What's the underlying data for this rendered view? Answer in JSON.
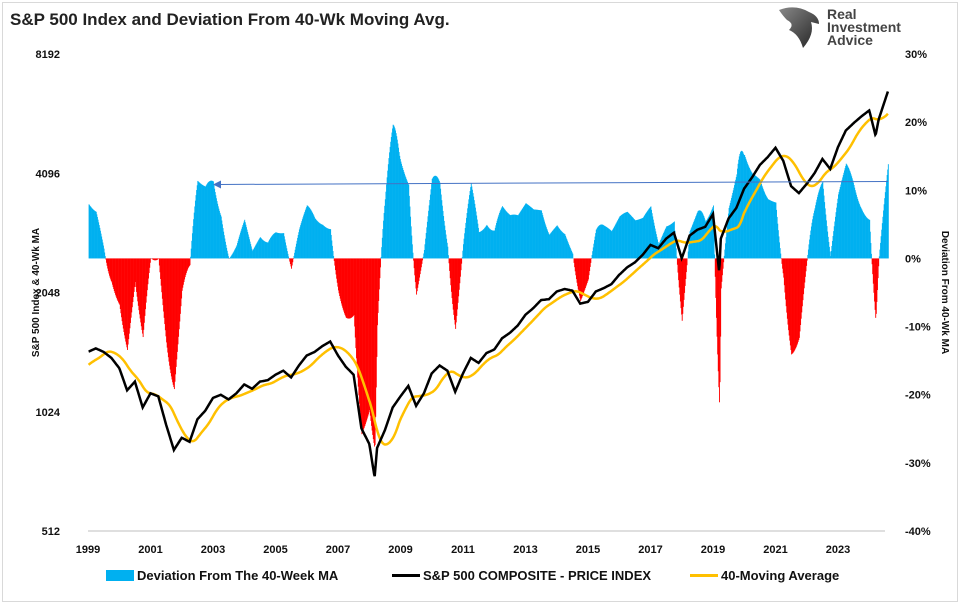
{
  "title": "S&P 500 Index and Deviation From 40-Wk Moving Avg.",
  "logo": {
    "text": [
      "Real",
      "Investment",
      "Advice"
    ],
    "icon": "eagle-icon"
  },
  "colors": {
    "deviation_pos": "#00b0f0",
    "deviation_neg": "#ff0000",
    "price": "#000000",
    "ma": "#ffc000",
    "annotation": "#4472c4"
  },
  "chart_data": {
    "type": "line+bar",
    "title": "S&P 500 Index and Deviation From 40-Wk Moving Avg.",
    "xlabel": "",
    "ylabel_left": "S&P 500 Index & 40-Wk MA",
    "ylabel_right": "Deviation From 40-Wk MA",
    "x_ticks": [
      "1999",
      "2001",
      "2003",
      "2005",
      "2007",
      "2009",
      "2011",
      "2013",
      "2015",
      "2017",
      "2019",
      "2021",
      "2023"
    ],
    "left_axis": {
      "scale": "log2",
      "range": [
        512,
        8192
      ],
      "ticks": [
        "512",
        "1024",
        "2048",
        "4096",
        "8192"
      ]
    },
    "right_axis": {
      "range": [
        -40,
        30
      ],
      "unit": "%",
      "ticks": [
        "-40%",
        "-30%",
        "-20%",
        "-10%",
        "0%",
        "10%",
        "20%",
        "30%"
      ]
    },
    "ma_window_weeks": 40,
    "legend": {
      "placement": "bottom",
      "entries": [
        "Deviation From The 40-Week MA",
        "S&P 500 COMPOSITE - PRICE INDEX",
        "40-Moving Average"
      ]
    },
    "annotation": {
      "type": "arrow",
      "deviation_level": 11,
      "from_year": 2024.6,
      "to_year": 2003.0
    },
    "price_series": [
      [
        1998.25,
        1300
      ],
      [
        1998.5,
        1370
      ],
      [
        1998.75,
        1280
      ],
      [
        1999.0,
        1450
      ],
      [
        1999.25,
        1480
      ],
      [
        1999.5,
        1450
      ],
      [
        1999.75,
        1400
      ],
      [
        2000.0,
        1320
      ],
      [
        2000.25,
        1160
      ],
      [
        2000.5,
        1220
      ],
      [
        2000.75,
        1050
      ],
      [
        2001.0,
        1140
      ],
      [
        2001.25,
        1120
      ],
      [
        2001.5,
        950
      ],
      [
        2001.75,
        820
      ],
      [
        2002.0,
        880
      ],
      [
        2002.25,
        860
      ],
      [
        2002.5,
        980
      ],
      [
        2002.75,
        1030
      ],
      [
        2003.0,
        1110
      ],
      [
        2003.25,
        1130
      ],
      [
        2003.5,
        1100
      ],
      [
        2003.75,
        1140
      ],
      [
        2004.0,
        1200
      ],
      [
        2004.25,
        1170
      ],
      [
        2004.5,
        1220
      ],
      [
        2004.75,
        1230
      ],
      [
        2005.0,
        1270
      ],
      [
        2005.25,
        1300
      ],
      [
        2005.5,
        1250
      ],
      [
        2005.75,
        1340
      ],
      [
        2006.0,
        1420
      ],
      [
        2006.25,
        1450
      ],
      [
        2006.5,
        1500
      ],
      [
        2006.75,
        1540
      ],
      [
        2007.0,
        1420
      ],
      [
        2007.25,
        1330
      ],
      [
        2007.5,
        1270
      ],
      [
        2007.75,
        930
      ],
      [
        2008.0,
        850
      ],
      [
        2008.17,
        700
      ],
      [
        2008.25,
        830
      ],
      [
        2008.5,
        920
      ],
      [
        2008.75,
        1050
      ],
      [
        2009.0,
        1120
      ],
      [
        2009.25,
        1190
      ],
      [
        2009.5,
        1060
      ],
      [
        2009.75,
        1140
      ],
      [
        2010.0,
        1280
      ],
      [
        2010.25,
        1340
      ],
      [
        2010.5,
        1300
      ],
      [
        2010.75,
        1150
      ],
      [
        2011.0,
        1280
      ],
      [
        2011.25,
        1400
      ],
      [
        2011.5,
        1360
      ],
      [
        2011.75,
        1440
      ],
      [
        2012.0,
        1470
      ],
      [
        2012.25,
        1570
      ],
      [
        2012.5,
        1620
      ],
      [
        2012.75,
        1690
      ],
      [
        2013.0,
        1800
      ],
      [
        2013.25,
        1870
      ],
      [
        2013.5,
        1960
      ],
      [
        2013.75,
        1970
      ],
      [
        2014.0,
        2060
      ],
      [
        2014.25,
        2090
      ],
      [
        2014.5,
        2070
      ],
      [
        2014.75,
        1920
      ],
      [
        2015.0,
        1940
      ],
      [
        2015.25,
        2060
      ],
      [
        2015.5,
        2100
      ],
      [
        2015.75,
        2150
      ],
      [
        2016.0,
        2270
      ],
      [
        2016.25,
        2370
      ],
      [
        2016.5,
        2440
      ],
      [
        2016.75,
        2550
      ],
      [
        2017.0,
        2700
      ],
      [
        2017.25,
        2650
      ],
      [
        2017.5,
        2800
      ],
      [
        2017.75,
        2900
      ],
      [
        2018.0,
        2500
      ],
      [
        2018.25,
        2850
      ],
      [
        2018.5,
        2950
      ],
      [
        2018.75,
        3000
      ],
      [
        2019.0,
        3230
      ],
      [
        2019.2,
        2300
      ],
      [
        2019.25,
        2800
      ],
      [
        2019.5,
        3150
      ],
      [
        2019.75,
        3350
      ],
      [
        2020.0,
        3750
      ],
      [
        2020.25,
        4000
      ],
      [
        2020.5,
        4300
      ],
      [
        2020.75,
        4500
      ],
      [
        2021.0,
        4750
      ],
      [
        2021.25,
        4400
      ],
      [
        2021.5,
        3800
      ],
      [
        2021.75,
        3650
      ],
      [
        2022.0,
        3850
      ],
      [
        2022.25,
        4100
      ],
      [
        2022.5,
        4450
      ],
      [
        2022.75,
        4200
      ],
      [
        2023.0,
        4770
      ],
      [
        2023.25,
        5250
      ],
      [
        2023.5,
        5480
      ],
      [
        2023.75,
        5700
      ],
      [
        2024.0,
        5900
      ],
      [
        2024.2,
        5100
      ],
      [
        2024.3,
        5600
      ],
      [
        2024.5,
        6250
      ],
      [
        2024.6,
        6600
      ]
    ]
  }
}
